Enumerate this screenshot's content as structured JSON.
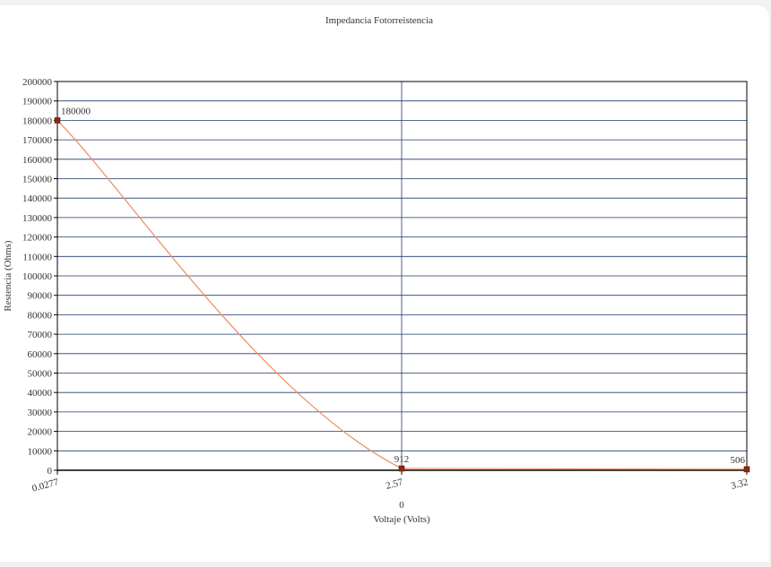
{
  "chart_data": {
    "type": "line",
    "title": "Impedancia Fotorreistencia",
    "xlabel": "Voltaje (Volts)",
    "ylabel": "Restencia (Ohms)",
    "x_axis_extra_label": "0",
    "x_tick_labels": [
      "0.0277",
      "2.57",
      "3.32"
    ],
    "ylim": [
      0,
      200000
    ],
    "y_ticks": [
      0,
      10000,
      20000,
      30000,
      40000,
      50000,
      60000,
      70000,
      80000,
      90000,
      100000,
      110000,
      120000,
      130000,
      140000,
      150000,
      160000,
      170000,
      180000,
      190000,
      200000
    ],
    "grid": true,
    "series": [
      {
        "points": [
          {
            "x": "0.0277",
            "y": 180000,
            "label": "180000"
          },
          {
            "x": "2.57",
            "y": 912,
            "label": "912"
          },
          {
            "x": "3.32",
            "y": 506,
            "label": "506"
          }
        ]
      }
    ],
    "colors": {
      "line": "#f08a5d",
      "marker": "#8b2a10",
      "grid": "#1f3a6e",
      "axis": "#000000"
    }
  }
}
